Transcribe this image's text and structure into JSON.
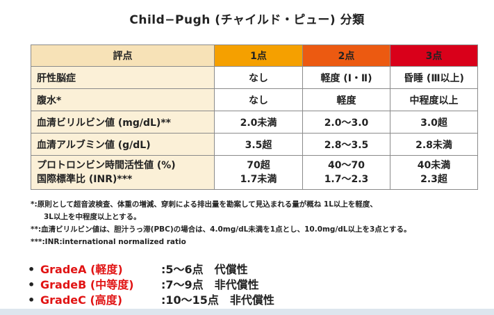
{
  "title": "Child−Pugh (チャイルド・ピュー) 分類",
  "table": {
    "headers": [
      "評点",
      "1点",
      "2点",
      "3点"
    ],
    "header_colors": [
      "#f7e2b7",
      "#f5a000",
      "#ec5a11",
      "#d9001a"
    ],
    "rows": [
      {
        "label": "肝性脳症",
        "cells": [
          "なし",
          "軽度 (Ⅰ・Ⅱ)",
          "昏睡 (Ⅲ以上)"
        ]
      },
      {
        "label": "腹水*",
        "cells": [
          "なし",
          "軽度",
          "中程度以上"
        ]
      },
      {
        "label": "血清ビリルビン値 (mg/dL)**",
        "cells": [
          "2.0未満",
          "2.0〜3.0",
          "3.0超"
        ]
      },
      {
        "label": "血清アルブミン値 (g/dL)",
        "cells": [
          "3.5超",
          "2.8〜3.5",
          "2.8未満"
        ]
      },
      {
        "label_line1": "プロトロンビン時間活性値 (%)",
        "label_line2": "国際標準比 (INR)***",
        "cells_line1": [
          "70超",
          "40〜70",
          "40未満"
        ],
        "cells_line2": [
          "1.7未満",
          "1.7〜2.3",
          "2.3超"
        ]
      }
    ]
  },
  "notes": {
    "n1a": "*:原則として超音波検査、体重の増減、穿刺による排出量を勘案して見込まれる量が概ね 1L以上を軽度、",
    "n1b": "3L以上を中程度以上とする。",
    "n2": "**:血清ビリルビン値は、胆汁うっ滞(PBC)の場合は、4.0mg/dL未満を1点とし、10.0mg/dL以上を3点とする。",
    "n3": "***:INR:international normalized ratio"
  },
  "grades": [
    {
      "bullet": "•",
      "name": "GradeA (軽度)",
      "desc": ":5〜6点　代償性"
    },
    {
      "bullet": "•",
      "name": "GradeB (中等度)",
      "desc": ":7〜9点　非代償性"
    },
    {
      "bullet": "•",
      "name": "GradeC (高度)",
      "desc": ":10〜15点　非代償性"
    }
  ]
}
